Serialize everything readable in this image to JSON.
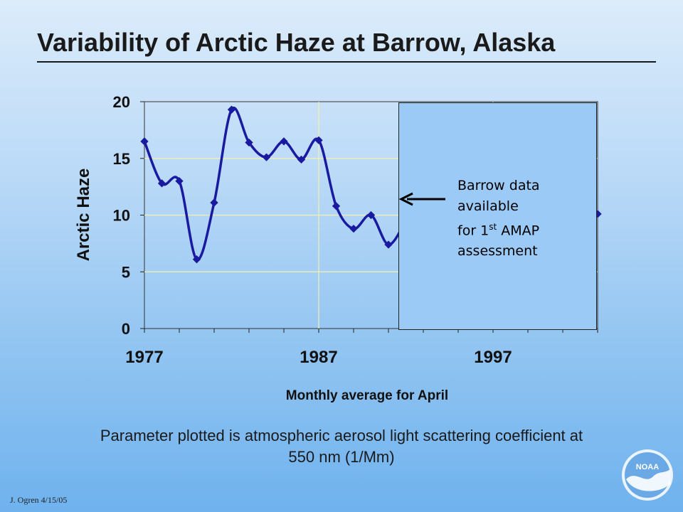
{
  "title": "Variability of Arctic Haze at Barrow, Alaska",
  "chart_data": {
    "type": "line",
    "title": "",
    "xlabel": "Monthly average for April",
    "ylabel": "Arctic Haze",
    "xlim": [
      1977,
      2003
    ],
    "ylim": [
      0,
      20
    ],
    "x_ticks": [
      "1977",
      "1987",
      "1997"
    ],
    "y_ticks": [
      "0",
      "5",
      "10",
      "15",
      "20"
    ],
    "grid": true,
    "series": [
      {
        "name": "",
        "color": "#1a1aa0",
        "x": [
          1977,
          1978,
          1979,
          1980,
          1981,
          1982,
          1983,
          1984,
          1985,
          1986,
          1987,
          1988,
          1989,
          1990,
          1991,
          1992,
          2003
        ],
        "values": [
          16.5,
          12.8,
          13.0,
          6.1,
          11.1,
          19.3,
          16.4,
          15.1,
          16.5,
          14.9,
          16.6,
          10.8,
          8.8,
          10.0,
          7.4,
          9.5,
          10.1
        ]
      }
    ],
    "annotation": {
      "lines": [
        "Barrow data",
        "available",
        "for 1st AMAP",
        "assessment"
      ],
      "arrow_direction": "left",
      "box_color": "#9ccaf6"
    }
  },
  "caption": {
    "line1": "Parameter plotted is atmospheric aerosol light scattering coefficient at",
    "line2": "550 nm (1/Mm)"
  },
  "footer": "J. Ogren  4/15/05",
  "logo_text": "NOAA"
}
